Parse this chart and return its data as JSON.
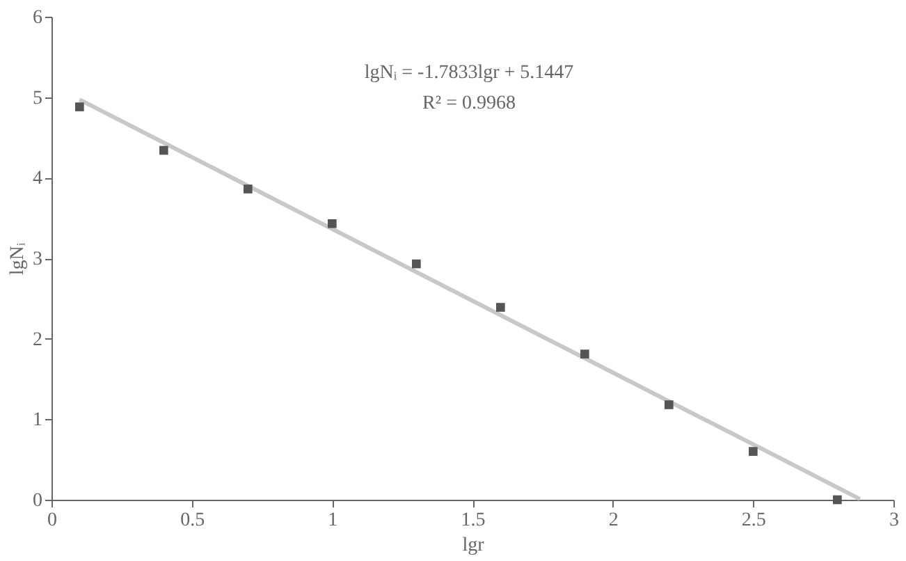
{
  "chart_data": {
    "type": "scatter",
    "xlabel": "lgr",
    "ylabel": "lgNᵢ",
    "xlim": [
      0,
      3
    ],
    "xticks": [
      0,
      0.5,
      1,
      1.5,
      2,
      2.5,
      3
    ],
    "ylim": [
      0,
      6
    ],
    "yticks": [
      0,
      1,
      2,
      3,
      4,
      5,
      6
    ],
    "grid": false,
    "series": [
      {
        "type": "line",
        "color": "#c8c8c8",
        "x": [
          0.1,
          2.88
        ],
        "values": [
          4.97,
          0.01
        ]
      },
      {
        "color": "#555555",
        "marker": "square",
        "x": [
          0.1,
          0.4,
          0.7,
          1.0,
          1.3,
          1.6,
          1.9,
          2.2,
          2.5,
          2.8
        ],
        "values": [
          4.88,
          4.34,
          3.86,
          3.43,
          2.93,
          2.39,
          1.81,
          1.18,
          0.6,
          0.0
        ]
      }
    ],
    "annotations": [
      "lgNᵢ = -1.7833lgr + 5.1447",
      "R² = 0.9968"
    ]
  }
}
